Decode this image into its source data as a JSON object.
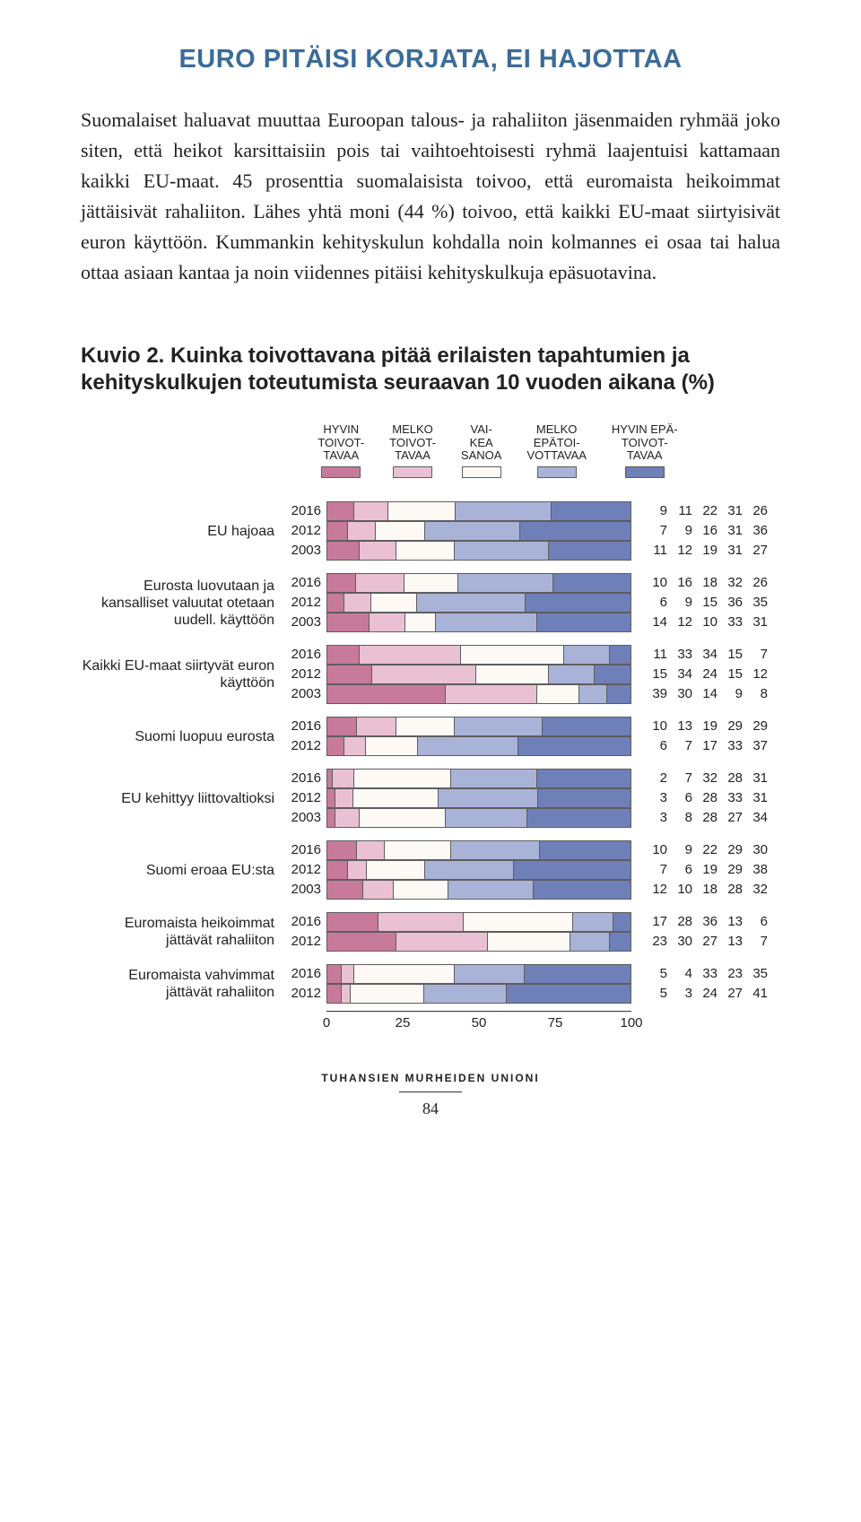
{
  "title_color": "#3b6c99",
  "title": "EURO PITÄISI KORJATA, EI HAJOTTAA",
  "body": "Suomalaiset haluavat muuttaa Euroopan talous- ja rahaliiton jäsenmaiden ryhmää joko siten, että heikot karsittaisiin pois tai vaihtoehtoisesti ryhmä laajentuisi kattamaan kaikki EU-maat. 45 prosenttia suomalaisista toivoo, että euromaista heikoimmat jättäisivät rahaliiton. Lähes yhtä moni (44 %) toivoo, että kaikki EU-maat siirtyisivät euron käyttöön. Kummankin kehityskulun kohdalla noin kolmannes ei osaa tai halua ottaa asiaan kantaa ja noin viidennes pitäisi kehityskulkuja epäsuotavina.",
  "kuvio_heading": "Kuvio 2. Kuinka toivottavana pitää erilaisten tapahtumien ja kehityskulkujen toteutumista seuraavan 10 vuoden aikana (%)",
  "legend": [
    {
      "lines": [
        "HYVIN",
        "TOIVOT-",
        "TAVAA"
      ],
      "color": "#c77a9a"
    },
    {
      "lines": [
        "MELKO",
        "TOIVOT-",
        "TAVAA"
      ],
      "color": "#e9c1d2"
    },
    {
      "lines": [
        "VAI-",
        "KEA",
        "SANOA"
      ],
      "color": "#fdfaf6"
    },
    {
      "lines": [
        "MELKO",
        "EPÄTOI-",
        "VOTTAVAA"
      ],
      "color": "#a9b3d8"
    },
    {
      "lines": [
        "HYVIN EPÄ-",
        "TOIVOT-",
        "TAVAA"
      ],
      "color": "#6f7fb8"
    }
  ],
  "seg_border": "#5d5d5d",
  "groups": [
    {
      "label": "EU hajoaa",
      "rows": [
        {
          "year": "2016",
          "v": [
            9,
            11,
            22,
            31,
            26
          ]
        },
        {
          "year": "2012",
          "v": [
            7,
            9,
            16,
            31,
            36
          ]
        },
        {
          "year": "2003",
          "v": [
            11,
            12,
            19,
            31,
            27
          ]
        }
      ]
    },
    {
      "label": "Eurosta luovutaan ja kansalliset valuutat otetaan uudell. käyttöön",
      "rows": [
        {
          "year": "2016",
          "v": [
            10,
            16,
            18,
            32,
            26
          ]
        },
        {
          "year": "2012",
          "v": [
            6,
            9,
            15,
            36,
            35
          ]
        },
        {
          "year": "2003",
          "v": [
            14,
            12,
            10,
            33,
            31
          ]
        }
      ]
    },
    {
      "label": "Kaikki EU-maat siirtyvät euron käyttöön",
      "rows": [
        {
          "year": "2016",
          "v": [
            11,
            33,
            34,
            15,
            7
          ]
        },
        {
          "year": "2012",
          "v": [
            15,
            34,
            24,
            15,
            12
          ]
        },
        {
          "year": "2003",
          "v": [
            39,
            30,
            14,
            9,
            8
          ]
        }
      ]
    },
    {
      "label": "Suomi luopuu eurosta",
      "rows": [
        {
          "year": "2016",
          "v": [
            10,
            13,
            19,
            29,
            29
          ]
        },
        {
          "year": "2012",
          "v": [
            6,
            7,
            17,
            33,
            37
          ]
        }
      ]
    },
    {
      "label": "EU kehittyy liittovaltioksi",
      "rows": [
        {
          "year": "2016",
          "v": [
            2,
            7,
            32,
            28,
            31
          ]
        },
        {
          "year": "2012",
          "v": [
            3,
            6,
            28,
            33,
            31
          ]
        },
        {
          "year": "2003",
          "v": [
            3,
            8,
            28,
            27,
            34
          ]
        }
      ]
    },
    {
      "label": "Suomi eroaa EU:sta",
      "rows": [
        {
          "year": "2016",
          "v": [
            10,
            9,
            22,
            29,
            30
          ]
        },
        {
          "year": "2012",
          "v": [
            7,
            6,
            19,
            29,
            38
          ]
        },
        {
          "year": "2003",
          "v": [
            12,
            10,
            18,
            28,
            32
          ]
        }
      ]
    },
    {
      "label": "Euromaista heikoimmat jättävät rahaliiton",
      "rows": [
        {
          "year": "2016",
          "v": [
            17,
            28,
            36,
            13,
            6
          ]
        },
        {
          "year": "2012",
          "v": [
            23,
            30,
            27,
            13,
            7
          ]
        }
      ]
    },
    {
      "label": "Euromaista vahvimmat jättävät rahaliiton",
      "rows": [
        {
          "year": "2016",
          "v": [
            5,
            4,
            33,
            23,
            35
          ]
        },
        {
          "year": "2012",
          "v": [
            5,
            3,
            24,
            27,
            41
          ]
        }
      ]
    }
  ],
  "axis_ticks": [
    0,
    25,
    50,
    75,
    100
  ],
  "footer_text": "TUHANSIEN MURHEIDEN UNIONI",
  "page_number": "84"
}
